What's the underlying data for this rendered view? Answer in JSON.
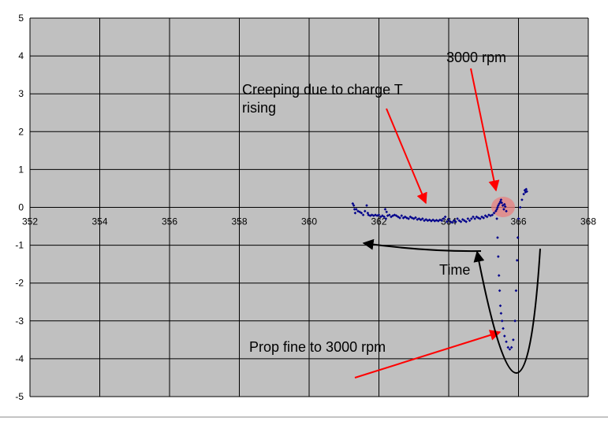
{
  "chart_data": {
    "type": "scatter",
    "xlim": [
      352,
      368
    ],
    "ylim": [
      -5,
      5
    ],
    "x_ticks": [
      352,
      354,
      356,
      358,
      360,
      362,
      364,
      366,
      368
    ],
    "y_ticks": [
      5,
      4,
      3,
      2,
      1,
      0,
      -1,
      -2,
      -3,
      -4,
      -5
    ],
    "grid": true,
    "legend": "none",
    "colors": {
      "plot_background": "#c0c0c0",
      "grid": "#000000",
      "points": "#00008b",
      "red_arrow": "#ff0000",
      "black_arrow": "#000000",
      "highlight": "#e88080"
    },
    "series": [
      {
        "marker": "small-diamond",
        "points": [
          [
            361.25,
            0.1
          ],
          [
            361.28,
            0.05
          ],
          [
            361.3,
            -0.05
          ],
          [
            361.32,
            -0.15
          ],
          [
            361.35,
            -0.05
          ],
          [
            361.4,
            -0.1
          ],
          [
            361.45,
            -0.12
          ],
          [
            361.5,
            -0.15
          ],
          [
            361.55,
            -0.2
          ],
          [
            361.6,
            -0.1
          ],
          [
            361.65,
            0.05
          ],
          [
            361.68,
            -0.15
          ],
          [
            361.7,
            -0.2
          ],
          [
            361.75,
            -0.22
          ],
          [
            361.8,
            -0.2
          ],
          [
            361.85,
            -0.22
          ],
          [
            361.9,
            -0.2
          ],
          [
            361.95,
            -0.22
          ],
          [
            362.0,
            -0.2
          ],
          [
            362.05,
            -0.25
          ],
          [
            362.1,
            -0.22
          ],
          [
            362.15,
            -0.25
          ],
          [
            362.18,
            -0.05
          ],
          [
            362.2,
            -0.3
          ],
          [
            362.22,
            -0.12
          ],
          [
            362.25,
            -0.22
          ],
          [
            362.3,
            -0.2
          ],
          [
            362.35,
            -0.25
          ],
          [
            362.4,
            -0.22
          ],
          [
            362.45,
            -0.2
          ],
          [
            362.5,
            -0.22
          ],
          [
            362.55,
            -0.25
          ],
          [
            362.6,
            -0.28
          ],
          [
            362.65,
            -0.22
          ],
          [
            362.7,
            -0.28
          ],
          [
            362.75,
            -0.25
          ],
          [
            362.8,
            -0.28
          ],
          [
            362.85,
            -0.3
          ],
          [
            362.9,
            -0.25
          ],
          [
            362.95,
            -0.28
          ],
          [
            363.0,
            -0.3
          ],
          [
            363.05,
            -0.27
          ],
          [
            363.1,
            -0.32
          ],
          [
            363.15,
            -0.3
          ],
          [
            363.2,
            -0.33
          ],
          [
            363.25,
            -0.3
          ],
          [
            363.3,
            -0.35
          ],
          [
            363.35,
            -0.32
          ],
          [
            363.4,
            -0.35
          ],
          [
            363.45,
            -0.33
          ],
          [
            363.5,
            -0.36
          ],
          [
            363.55,
            -0.33
          ],
          [
            363.6,
            -0.36
          ],
          [
            363.65,
            -0.34
          ],
          [
            363.7,
            -0.36
          ],
          [
            363.75,
            -0.33
          ],
          [
            363.8,
            -0.35
          ],
          [
            363.85,
            -0.3
          ],
          [
            363.9,
            -0.25
          ],
          [
            363.95,
            -0.38
          ],
          [
            364.0,
            -0.32
          ],
          [
            364.05,
            -0.38
          ],
          [
            364.1,
            -0.4
          ],
          [
            364.15,
            -0.35
          ],
          [
            364.2,
            -0.38
          ],
          [
            364.25,
            -0.3
          ],
          [
            364.3,
            -0.35
          ],
          [
            364.35,
            -0.38
          ],
          [
            364.4,
            -0.32
          ],
          [
            364.45,
            -0.35
          ],
          [
            364.5,
            -0.38
          ],
          [
            364.55,
            -0.3
          ],
          [
            364.6,
            -0.35
          ],
          [
            364.65,
            -0.3
          ],
          [
            364.7,
            -0.25
          ],
          [
            364.75,
            -0.3
          ],
          [
            364.8,
            -0.25
          ],
          [
            364.85,
            -0.28
          ],
          [
            364.9,
            -0.3
          ],
          [
            364.95,
            -0.25
          ],
          [
            365.0,
            -0.28
          ],
          [
            365.05,
            -0.22
          ],
          [
            365.1,
            -0.25
          ],
          [
            365.15,
            -0.2
          ],
          [
            365.2,
            -0.22
          ],
          [
            365.25,
            -0.2
          ],
          [
            365.3,
            -0.15
          ],
          [
            365.35,
            -0.1
          ],
          [
            365.38,
            -0.05
          ],
          [
            365.4,
            0.0
          ],
          [
            365.42,
            0.05
          ],
          [
            365.45,
            0.1
          ],
          [
            365.48,
            0.15
          ],
          [
            365.5,
            0.2
          ],
          [
            365.52,
            0.12
          ],
          [
            365.55,
            0.05
          ],
          [
            365.58,
            -0.05
          ],
          [
            365.6,
            0.08
          ],
          [
            365.62,
            0.02
          ],
          [
            365.65,
            -0.1
          ],
          [
            365.38,
            -0.3
          ],
          [
            365.4,
            -0.8
          ],
          [
            365.42,
            -1.3
          ],
          [
            365.44,
            -1.8
          ],
          [
            365.46,
            -2.2
          ],
          [
            365.48,
            -2.6
          ],
          [
            365.5,
            -2.8
          ],
          [
            365.53,
            -3.0
          ],
          [
            365.56,
            -3.2
          ],
          [
            365.6,
            -3.4
          ],
          [
            365.65,
            -3.55
          ],
          [
            365.7,
            -3.7
          ],
          [
            365.75,
            -3.75
          ],
          [
            365.8,
            -3.7
          ],
          [
            365.85,
            -3.5
          ],
          [
            365.9,
            -3.0
          ],
          [
            365.93,
            -2.2
          ],
          [
            365.96,
            -1.4
          ],
          [
            365.98,
            -0.8
          ],
          [
            366.0,
            -0.3
          ],
          [
            366.05,
            0.0
          ],
          [
            366.1,
            0.2
          ],
          [
            366.15,
            0.35
          ],
          [
            366.18,
            0.45
          ],
          [
            366.2,
            0.4
          ],
          [
            366.22,
            0.48
          ],
          [
            366.24,
            0.42
          ]
        ]
      }
    ],
    "annotations": [
      {
        "text": "3000 rpm"
      },
      {
        "text": "Creeping due to charge T"
      },
      {
        "text": "rising"
      },
      {
        "text": "Time"
      },
      {
        "text": "Prop fine to 3000 rpm"
      }
    ]
  }
}
